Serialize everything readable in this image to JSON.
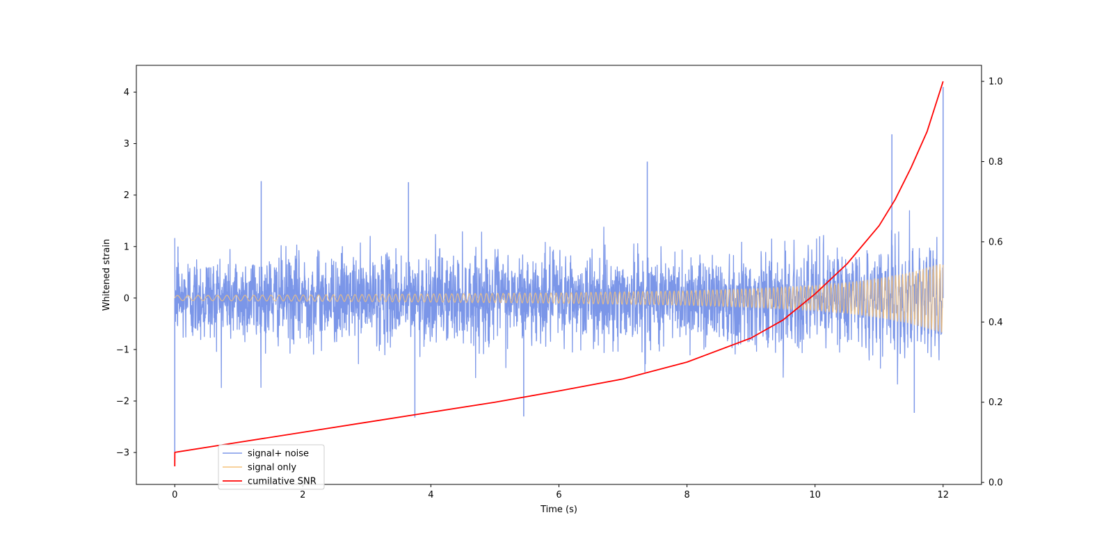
{
  "chart_data": {
    "type": "line",
    "xlabel": "Time (s)",
    "ylabel": "Whitened strain",
    "xlim": [
      -0.6,
      12.6
    ],
    "ylim": [
      -3.62,
      4.52
    ],
    "y2lim": [
      -0.005,
      1.04
    ],
    "xticks": [
      0,
      2,
      4,
      6,
      8,
      10,
      12
    ],
    "yticks": [
      -3,
      -2,
      -1,
      0,
      1,
      2,
      3,
      4
    ],
    "y2ticks": [
      0.0,
      0.2,
      0.4,
      0.6,
      0.8,
      1.0
    ],
    "xtick_labels": [
      "0",
      "2",
      "4",
      "6",
      "8",
      "10",
      "12"
    ],
    "ytick_labels": [
      "−3",
      "−2",
      "−1",
      "0",
      "1",
      "2",
      "3",
      "4"
    ],
    "y2tick_labels": [
      "0.0",
      "0.2",
      "0.4",
      "0.6",
      "0.8",
      "1.0"
    ],
    "grid": false,
    "legend_position": "lower-left",
    "series": [
      {
        "name": "signal+ noise",
        "axis": "left",
        "color": "#7b96e8",
        "description_values": {
          "x_range": [
            0,
            12
          ],
          "typical_band": [
            -1.1,
            1.6
          ],
          "spikes": [
            [
              0.0,
              -3.0
            ],
            [
              0.05,
              1.0
            ],
            [
              1.35,
              2.27
            ],
            [
              3.65,
              2.25
            ],
            [
              3.75,
              -2.32
            ],
            [
              5.45,
              -2.3
            ],
            [
              7.38,
              2.65
            ],
            [
              11.2,
              3.18
            ],
            [
              11.55,
              -2.23
            ],
            [
              12.0,
              4.1
            ]
          ]
        }
      },
      {
        "name": "signal only",
        "axis": "left",
        "color": "#f5c27a",
        "envelope": {
          "x": [
            0,
            2,
            4,
            6,
            8,
            9,
            10,
            10.5,
            11,
            11.5,
            12
          ],
          "amplitude": [
            0.05,
            0.06,
            0.08,
            0.1,
            0.14,
            0.18,
            0.24,
            0.3,
            0.38,
            0.5,
            0.68
          ]
        }
      },
      {
        "name": "cumilative SNR",
        "axis": "right",
        "color": "#ff0000",
        "x": [
          0,
          0.001,
          1,
          2,
          3,
          4,
          5,
          6,
          7,
          8,
          9,
          9.5,
          10,
          10.5,
          11,
          11.25,
          11.5,
          11.75,
          12
        ],
        "values": [
          0.04,
          0.075,
          0.1,
          0.125,
          0.15,
          0.175,
          0.2,
          0.228,
          0.258,
          0.3,
          0.36,
          0.405,
          0.47,
          0.545,
          0.64,
          0.705,
          0.785,
          0.875,
          1.0
        ]
      }
    ]
  }
}
